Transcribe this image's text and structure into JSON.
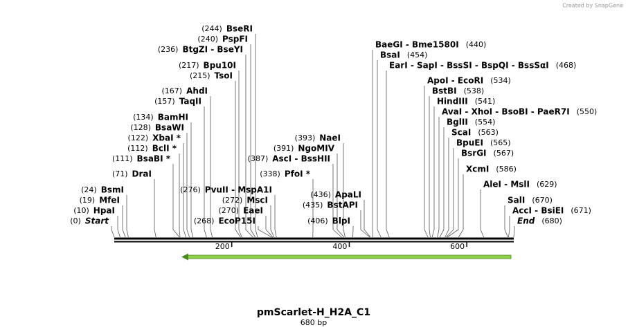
{
  "title": "pmScarlet-H_H2A_C1",
  "subtitle": "680 bp",
  "watermark": "Created by SnapGene",
  "map": {
    "length": 680,
    "ticks": [
      200,
      400,
      600
    ]
  },
  "enzymes": [
    {
      "name": "Start",
      "position": 0,
      "position_label": "(0)"
    },
    {
      "name": "HpaI",
      "position": 10,
      "position_label": "(10)"
    },
    {
      "name": "MfeI",
      "position": 19,
      "position_label": "(19)"
    },
    {
      "name": "BsmI",
      "position": 24,
      "position_label": "(24)"
    },
    {
      "name": "DraI",
      "position": 71,
      "position_label": "(71)"
    },
    {
      "name": "BsaBI *",
      "position": 111,
      "position_label": "(111)"
    },
    {
      "name": "BclI *",
      "position": 112,
      "position_label": "(112)"
    },
    {
      "name": "XbaI *",
      "position": 122,
      "position_label": "(122)"
    },
    {
      "name": "BsaWI",
      "position": 128,
      "position_label": "(128)"
    },
    {
      "name": "BamHI",
      "position": 134,
      "position_label": "(134)"
    },
    {
      "name": "TaqII",
      "position": 157,
      "position_label": "(157)"
    },
    {
      "name": "AhdI",
      "position": 167,
      "position_label": "(167)"
    },
    {
      "name": "TsoI",
      "position": 215,
      "position_label": "(215)"
    },
    {
      "name": "Bpu10I",
      "position": 217,
      "position_label": "(217)"
    },
    {
      "name": "BtgZI  -  BseYI",
      "position": 236,
      "position_label": "(236)"
    },
    {
      "name": "PspFI",
      "position": 240,
      "position_label": "(240)"
    },
    {
      "name": "BseRI",
      "position": 244,
      "position_label": "(244)"
    },
    {
      "name": "EcoP15I",
      "position": 268,
      "position_label": "(268)"
    },
    {
      "name": "EaeI",
      "position": 270,
      "position_label": "(270)"
    },
    {
      "name": "MscI",
      "position": 272,
      "position_label": "(272)"
    },
    {
      "name": "PvuII  -  MspA1I",
      "position": 276,
      "position_label": "(276)"
    },
    {
      "name": "PfoI *",
      "position": 338,
      "position_label": "(338)"
    },
    {
      "name": "AscI  -  BssHII",
      "position": 387,
      "position_label": "(387)"
    },
    {
      "name": "NgoMIV",
      "position": 391,
      "position_label": "(391)"
    },
    {
      "name": "NaeI",
      "position": 393,
      "position_label": "(393)"
    },
    {
      "name": "BlpI",
      "position": 406,
      "position_label": "(406)"
    },
    {
      "name": "BstAPI",
      "position": 435,
      "position_label": "(435)"
    },
    {
      "name": "ApaLI",
      "position": 436,
      "position_label": "(436)"
    },
    {
      "name": "BaeGI  -  Bme1580I",
      "position": 440,
      "position_label": "(440)"
    },
    {
      "name": "BsaI",
      "position": 454,
      "position_label": "(454)"
    },
    {
      "name": "EarI  -  SapI  -  BssSI  -  BspQI  -  BssSαI",
      "position": 468,
      "position_label": "(468)"
    },
    {
      "name": "ApoI  -  EcoRI",
      "position": 534,
      "position_label": "(534)"
    },
    {
      "name": "BstBI",
      "position": 538,
      "position_label": "(538)"
    },
    {
      "name": "HindIII",
      "position": 541,
      "position_label": "(541)"
    },
    {
      "name": "AvaI  -  XhoI  -  BsoBI  -  PaeR7I",
      "position": 550,
      "position_label": "(550)"
    },
    {
      "name": "BglII",
      "position": 554,
      "position_label": "(554)"
    },
    {
      "name": "ScaI",
      "position": 563,
      "position_label": "(563)"
    },
    {
      "name": "BpuEI",
      "position": 565,
      "position_label": "(565)"
    },
    {
      "name": "BsrGI",
      "position": 567,
      "position_label": "(567)"
    },
    {
      "name": "XcmI",
      "position": 586,
      "position_label": "(586)"
    },
    {
      "name": "AleI  -  MslI",
      "position": 629,
      "position_label": "(629)"
    },
    {
      "name": "SalI",
      "position": 670,
      "position_label": "(670)"
    },
    {
      "name": "AccI  -  BsiEI",
      "position": 671,
      "position_label": "(671)"
    },
    {
      "name": "End",
      "position": 680,
      "position_label": "(680)"
    }
  ]
}
